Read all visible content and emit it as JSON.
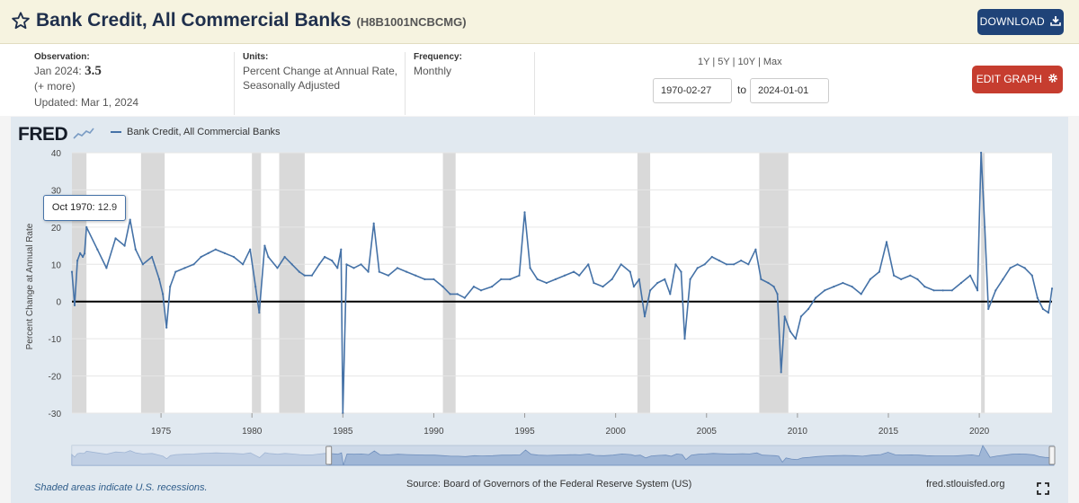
{
  "header": {
    "title": "Bank Credit, All Commercial Banks",
    "series_code": "(H8B1001NCBCMG)",
    "download_label": "DOWNLOAD"
  },
  "info": {
    "observation_label": "Observation:",
    "observation_period": "Jan 2024:",
    "observation_value": "3.5",
    "more_label": "(+ more)",
    "updated": "Updated: Mar 1, 2024",
    "units_label": "Units:",
    "units_line1": "Percent Change at Annual Rate,",
    "units_line2": "Seasonally Adjusted",
    "frequency_label": "Frequency:",
    "frequency_value": "Monthly"
  },
  "controls": {
    "range_1y": "1Y",
    "range_5y": "5Y",
    "range_10y": "10Y",
    "range_max": "Max",
    "separator": "|",
    "start_date": "1970-02-27",
    "to_label": "to",
    "end_date": "2024-01-01",
    "edit_label": "EDIT GRAPH"
  },
  "brand": {
    "logo": "FRED"
  },
  "tooltip": {
    "period": "Oct 1970:",
    "value": "12.9"
  },
  "footer": {
    "shaded_note": "Shaded areas indicate U.S. recessions.",
    "source": "Source: Board of Governors of the Federal Reserve System (US)",
    "site": "fred.stlouisfed.org"
  },
  "colors": {
    "series": "#4572a7",
    "recession": "#d9d9d9",
    "zero_line": "#000000",
    "download_button": "#1f4378",
    "edit_button": "#c63d2f"
  },
  "chart_data": {
    "type": "line",
    "title": "Bank Credit, All Commercial Banks",
    "ylabel": "Percent Change at Annual Rate",
    "xlabel": "",
    "legend": "Bank Credit, All Commercial Banks",
    "legend_position": "top-left",
    "ylim": [
      -30,
      40
    ],
    "yticks": [
      -30,
      -20,
      -10,
      0,
      10,
      20,
      30,
      40
    ],
    "xlim": [
      1970.1,
      2024.0
    ],
    "xticks": [
      1975,
      1980,
      1985,
      1990,
      1995,
      2000,
      2005,
      2010,
      2015,
      2020
    ],
    "recessions": [
      [
        1970.0,
        1970.9
      ],
      [
        1973.9,
        1975.2
      ],
      [
        1980.0,
        1980.5
      ],
      [
        1981.5,
        1982.9
      ],
      [
        1990.5,
        1991.2
      ],
      [
        2001.2,
        2001.9
      ],
      [
        2007.9,
        2009.5
      ],
      [
        2020.1,
        2020.3
      ]
    ],
    "series": [
      {
        "name": "Bank Credit, All Commercial Banks",
        "points": [
          [
            1970.1,
            8
          ],
          [
            1970.25,
            -1
          ],
          [
            1970.4,
            11
          ],
          [
            1970.55,
            13
          ],
          [
            1970.7,
            12
          ],
          [
            1970.79,
            12.9
          ],
          [
            1970.9,
            20
          ],
          [
            1971.5,
            14
          ],
          [
            1972.0,
            9
          ],
          [
            1972.5,
            17
          ],
          [
            1973.0,
            15
          ],
          [
            1973.3,
            22
          ],
          [
            1973.6,
            14
          ],
          [
            1974.0,
            10
          ],
          [
            1974.5,
            12
          ],
          [
            1974.9,
            6
          ],
          [
            1975.1,
            2
          ],
          [
            1975.3,
            -7
          ],
          [
            1975.5,
            4
          ],
          [
            1975.8,
            8
          ],
          [
            1976.3,
            9
          ],
          [
            1976.8,
            10
          ],
          [
            1977.2,
            12
          ],
          [
            1977.6,
            13
          ],
          [
            1978.0,
            14
          ],
          [
            1978.5,
            13
          ],
          [
            1979.0,
            12
          ],
          [
            1979.5,
            10
          ],
          [
            1979.9,
            14
          ],
          [
            1980.2,
            4
          ],
          [
            1980.4,
            -3
          ],
          [
            1980.7,
            15
          ],
          [
            1980.9,
            12
          ],
          [
            1981.4,
            9
          ],
          [
            1981.8,
            12
          ],
          [
            1982.2,
            10
          ],
          [
            1982.6,
            8
          ],
          [
            1982.9,
            7
          ],
          [
            1983.3,
            7
          ],
          [
            1983.7,
            10
          ],
          [
            1984.0,
            12
          ],
          [
            1984.4,
            11
          ],
          [
            1984.7,
            9
          ],
          [
            1984.9,
            14
          ],
          [
            1985.0,
            -30
          ],
          [
            1985.2,
            10
          ],
          [
            1985.6,
            9
          ],
          [
            1986.0,
            10
          ],
          [
            1986.4,
            8
          ],
          [
            1986.7,
            21
          ],
          [
            1987.0,
            8
          ],
          [
            1987.5,
            7
          ],
          [
            1988.0,
            9
          ],
          [
            1988.5,
            8
          ],
          [
            1989.0,
            7
          ],
          [
            1989.5,
            6
          ],
          [
            1990.0,
            6
          ],
          [
            1990.5,
            4
          ],
          [
            1990.9,
            2
          ],
          [
            1991.3,
            2
          ],
          [
            1991.7,
            1
          ],
          [
            1992.2,
            4
          ],
          [
            1992.6,
            3
          ],
          [
            1993.2,
            4
          ],
          [
            1993.7,
            6
          ],
          [
            1994.2,
            6
          ],
          [
            1994.7,
            7
          ],
          [
            1995.0,
            24
          ],
          [
            1995.3,
            9
          ],
          [
            1995.7,
            6
          ],
          [
            1996.2,
            5
          ],
          [
            1996.7,
            6
          ],
          [
            1997.2,
            7
          ],
          [
            1997.7,
            8
          ],
          [
            1998.0,
            7
          ],
          [
            1998.5,
            10
          ],
          [
            1998.8,
            5
          ],
          [
            1999.3,
            4
          ],
          [
            1999.8,
            6
          ],
          [
            2000.3,
            10
          ],
          [
            2000.8,
            8
          ],
          [
            2001.0,
            4
          ],
          [
            2001.3,
            6
          ],
          [
            2001.6,
            -4
          ],
          [
            2001.9,
            3
          ],
          [
            2002.3,
            5
          ],
          [
            2002.7,
            6
          ],
          [
            2003.0,
            2
          ],
          [
            2003.3,
            10
          ],
          [
            2003.6,
            8
          ],
          [
            2003.8,
            -10
          ],
          [
            2004.1,
            6
          ],
          [
            2004.5,
            9
          ],
          [
            2004.9,
            10
          ],
          [
            2005.3,
            12
          ],
          [
            2005.7,
            11
          ],
          [
            2006.1,
            10
          ],
          [
            2006.5,
            10
          ],
          [
            2006.9,
            11
          ],
          [
            2007.3,
            10
          ],
          [
            2007.7,
            14
          ],
          [
            2008.0,
            6
          ],
          [
            2008.4,
            5
          ],
          [
            2008.7,
            4
          ],
          [
            2008.9,
            2
          ],
          [
            2009.1,
            -19
          ],
          [
            2009.3,
            -4
          ],
          [
            2009.6,
            -8
          ],
          [
            2009.9,
            -10
          ],
          [
            2010.2,
            -4
          ],
          [
            2010.6,
            -2
          ],
          [
            2011.0,
            1
          ],
          [
            2011.5,
            3
          ],
          [
            2012.0,
            4
          ],
          [
            2012.5,
            5
          ],
          [
            2013.0,
            4
          ],
          [
            2013.5,
            2
          ],
          [
            2014.0,
            6
          ],
          [
            2014.5,
            8
          ],
          [
            2014.9,
            16
          ],
          [
            2015.3,
            7
          ],
          [
            2015.7,
            6
          ],
          [
            2016.2,
            7
          ],
          [
            2016.6,
            6
          ],
          [
            2017.0,
            4
          ],
          [
            2017.5,
            3
          ],
          [
            2018.0,
            3
          ],
          [
            2018.5,
            3
          ],
          [
            2019.0,
            5
          ],
          [
            2019.5,
            7
          ],
          [
            2019.9,
            3
          ],
          [
            2020.1,
            40
          ],
          [
            2020.3,
            20
          ],
          [
            2020.5,
            -2
          ],
          [
            2020.9,
            3
          ],
          [
            2021.3,
            6
          ],
          [
            2021.7,
            9
          ],
          [
            2022.1,
            10
          ],
          [
            2022.5,
            9
          ],
          [
            2022.9,
            7
          ],
          [
            2023.2,
            1
          ],
          [
            2023.5,
            -2
          ],
          [
            2023.8,
            -3
          ],
          [
            2023.9,
            0
          ],
          [
            2024.0,
            3.5
          ]
        ]
      }
    ]
  }
}
